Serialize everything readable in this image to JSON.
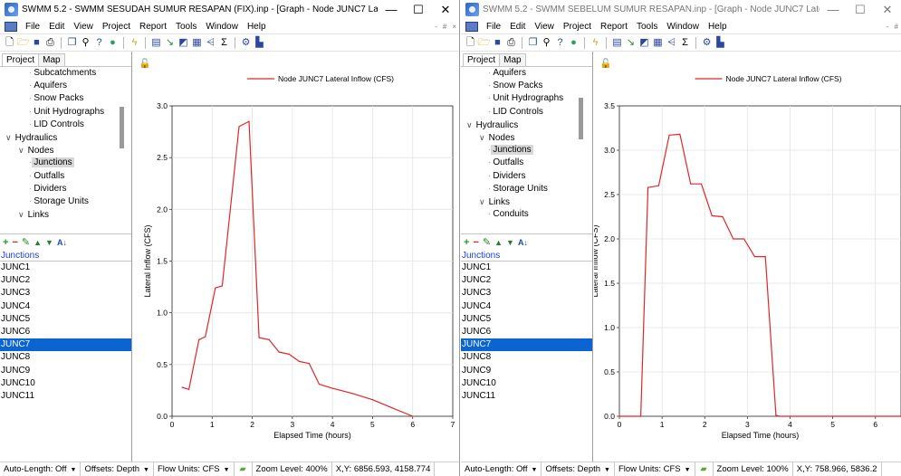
{
  "windows": [
    {
      "id": "L",
      "title": "SWMM 5.2 - SWMM SESUDAH SUMUR RESAPAN (FIX).inp - [Graph - Node JUNC7 Late...",
      "controls": {
        "minimize": "—",
        "maximize": "☐",
        "close": "✕"
      },
      "menu": [
        "File",
        "Edit",
        "View",
        "Project",
        "Report",
        "Tools",
        "Window",
        "Help"
      ],
      "mdi_buttons": [
        "-",
        "#",
        "×"
      ],
      "pane_tabs": [
        "Project",
        "Map"
      ],
      "tree": [
        {
          "label": "Subcatchments",
          "depth": 3,
          "exp": ""
        },
        {
          "label": "Aquifers",
          "depth": 3,
          "exp": ""
        },
        {
          "label": "Snow Packs",
          "depth": 3,
          "exp": ""
        },
        {
          "label": "Unit Hydrographs",
          "depth": 3,
          "exp": ""
        },
        {
          "label": "LID Controls",
          "depth": 3,
          "exp": ""
        },
        {
          "label": "Hydraulics",
          "depth": 1,
          "exp": "∨"
        },
        {
          "label": "Nodes",
          "depth": 2,
          "exp": "∨"
        },
        {
          "label": "Junctions",
          "depth": 3,
          "exp": "",
          "selected": true
        },
        {
          "label": "Outfalls",
          "depth": 3,
          "exp": ""
        },
        {
          "label": "Dividers",
          "depth": 3,
          "exp": ""
        },
        {
          "label": "Storage Units",
          "depth": 3,
          "exp": ""
        },
        {
          "label": "Links",
          "depth": 2,
          "exp": "∨"
        }
      ],
      "list_header": "Junctions",
      "list": [
        "JUNC1",
        "JUNC2",
        "JUNC3",
        "JUNC4",
        "JUNC5",
        "JUNC6",
        "JUNC7",
        "JUNC8",
        "JUNC9",
        "JUNC10",
        "JUNC11"
      ],
      "selected_item": "JUNC7",
      "status": {
        "auto_length": "Auto-Length: Off",
        "offsets": "Offsets: Depth",
        "flow_units": "Flow Units: CFS",
        "zoom": "Zoom Level: 400%",
        "xy": "X,Y: 6856.593, 4158.774"
      },
      "chart_data": {
        "type": "line",
        "legend": "Node JUNC7 Lateral Inflow (CFS)",
        "xlabel": "Elapsed Time (hours)",
        "ylabel": "Lateral Inflow (CFS)",
        "xlim": [
          0,
          7
        ],
        "ylim": [
          0,
          3.0
        ],
        "xticks": [
          0,
          1,
          2,
          3,
          4,
          5,
          6,
          7
        ],
        "yticks": [
          0.0,
          0.5,
          1.0,
          1.5,
          2.0,
          2.5,
          3.0
        ],
        "series_color": "#e0262a",
        "x": [
          0.25,
          0.42,
          0.67,
          0.83,
          1.08,
          1.25,
          1.67,
          1.92,
          2.17,
          2.42,
          2.67,
          2.92,
          3.17,
          3.42,
          3.67,
          4.0,
          4.5,
          5.0,
          5.5,
          6.0
        ],
        "y": [
          0.28,
          0.26,
          0.74,
          0.77,
          1.24,
          1.26,
          2.8,
          2.85,
          0.76,
          0.74,
          0.62,
          0.6,
          0.53,
          0.51,
          0.31,
          0.27,
          0.22,
          0.16,
          0.08,
          0.0
        ]
      }
    },
    {
      "id": "R",
      "title": "SWMM 5.2 - SWMM SEBELUM SUMUR RESAPAN.inp - [Graph - Node JUNC7 Lateral Inf...",
      "controls": {
        "minimize": "—",
        "maximize": "☐",
        "close": "✕"
      },
      "menu": [
        "File",
        "Edit",
        "View",
        "Project",
        "Report",
        "Tools",
        "Window",
        "Help"
      ],
      "mdi_buttons": [
        "-",
        "#"
      ],
      "pane_tabs": [
        "Project",
        "Map"
      ],
      "tree": [
        {
          "label": "Aquifers",
          "depth": 3,
          "exp": ""
        },
        {
          "label": "Snow Packs",
          "depth": 3,
          "exp": ""
        },
        {
          "label": "Unit Hydrographs",
          "depth": 3,
          "exp": ""
        },
        {
          "label": "LID Controls",
          "depth": 3,
          "exp": ""
        },
        {
          "label": "Hydraulics",
          "depth": 1,
          "exp": "∨"
        },
        {
          "label": "Nodes",
          "depth": 2,
          "exp": "∨"
        },
        {
          "label": "Junctions",
          "depth": 3,
          "exp": "",
          "selected": true
        },
        {
          "label": "Outfalls",
          "depth": 3,
          "exp": ""
        },
        {
          "label": "Dividers",
          "depth": 3,
          "exp": ""
        },
        {
          "label": "Storage Units",
          "depth": 3,
          "exp": ""
        },
        {
          "label": "Links",
          "depth": 2,
          "exp": "∨"
        },
        {
          "label": "Conduits",
          "depth": 3,
          "exp": ""
        }
      ],
      "list_header": "Junctions",
      "list": [
        "JUNC1",
        "JUNC2",
        "JUNC3",
        "JUNC4",
        "JUNC5",
        "JUNC6",
        "JUNC7",
        "JUNC8",
        "JUNC9",
        "JUNC10",
        "JUNC11"
      ],
      "selected_item": "JUNC7",
      "status": {
        "auto_length": "Auto-Length: Off",
        "offsets": "Offsets: Depth",
        "flow_units": "Flow Units: CFS",
        "zoom": "Zoom Level: 100%",
        "xy": "X,Y: 758.966, 5836.2"
      },
      "chart_data": {
        "type": "line",
        "legend": "Node JUNC7 Lateral Inflow (CFS)",
        "xlabel": "Elapsed Time (hours)",
        "ylabel": "Lateral Inflow (CFS)",
        "xlim": [
          0,
          6.6
        ],
        "ylim": [
          0,
          3.5
        ],
        "xticks": [
          0,
          1,
          2,
          3,
          4,
          5,
          6
        ],
        "yticks": [
          0.0,
          0.5,
          1.0,
          1.5,
          2.0,
          2.5,
          3.0,
          3.5
        ],
        "series_color": "#e0262a",
        "x": [
          0,
          0.5,
          0.67,
          0.92,
          1.17,
          1.42,
          1.67,
          1.92,
          2.17,
          2.42,
          2.67,
          2.92,
          3.17,
          3.42,
          3.67,
          3.75,
          4.0,
          6.6
        ],
        "y": [
          0,
          0,
          2.58,
          2.6,
          3.17,
          3.18,
          2.62,
          2.62,
          2.26,
          2.25,
          2.0,
          2.0,
          1.8,
          1.8,
          0.01,
          0.0,
          0.0,
          0.0
        ]
      }
    }
  ]
}
